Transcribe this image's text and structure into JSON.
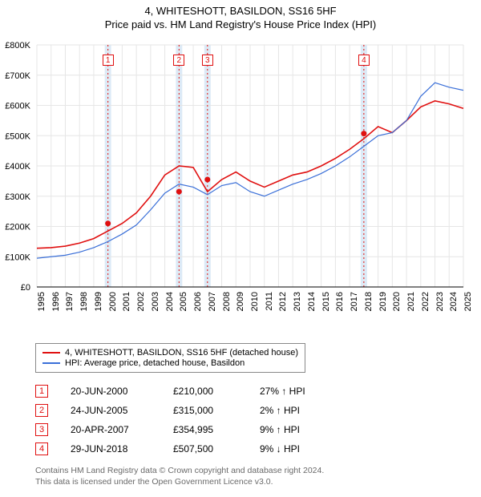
{
  "title_line1": "4, WHITESHOTT, BASILDON, SS16 5HF",
  "title_line2": "Price paid vs. HM Land Registry's House Price Index (HPI)",
  "chart": {
    "type": "line",
    "x_years": [
      1995,
      1996,
      1997,
      1998,
      1999,
      2000,
      2001,
      2002,
      2003,
      2004,
      2005,
      2006,
      2007,
      2008,
      2009,
      2010,
      2011,
      2012,
      2013,
      2014,
      2015,
      2016,
      2017,
      2018,
      2019,
      2020,
      2021,
      2022,
      2023,
      2024,
      2025
    ],
    "ylim": [
      0,
      800000
    ],
    "ytick_step": 100000,
    "ytick_labels": [
      "£0",
      "£100K",
      "£200K",
      "£300K",
      "£400K",
      "£500K",
      "£600K",
      "£700K",
      "£800K"
    ],
    "background": "#ffffff",
    "grid_color": "#e6e6e6",
    "series": [
      {
        "name": "red",
        "label": "4, WHITESHOTT, BASILDON, SS16 5HF (detached house)",
        "color": "#e01010",
        "width": 1.6,
        "values": [
          128,
          130,
          135,
          145,
          160,
          185,
          210,
          245,
          300,
          370,
          400,
          395,
          315,
          355,
          380,
          350,
          330,
          350,
          370,
          380,
          400,
          425,
          455,
          490,
          530,
          510,
          550,
          595,
          615,
          605,
          590
        ]
      },
      {
        "name": "blue",
        "label": "HPI: Average price, detached house, Basildon",
        "color": "#3a6fd8",
        "width": 1.2,
        "values": [
          95,
          100,
          105,
          115,
          130,
          150,
          175,
          205,
          255,
          310,
          340,
          330,
          305,
          335,
          345,
          315,
          300,
          320,
          340,
          355,
          375,
          400,
          430,
          465,
          500,
          510,
          550,
          630,
          675,
          660,
          650
        ]
      }
    ],
    "markers": [
      {
        "n": "1",
        "x_year": 2000,
        "price_k": 210
      },
      {
        "n": "2",
        "x_year": 2005,
        "price_k": 315
      },
      {
        "n": "3",
        "x_year": 2007,
        "price_k": 355
      },
      {
        "n": "4",
        "x_year": 2018,
        "price_k": 507
      }
    ],
    "marker_band_color": "#dceaf7",
    "marker_vline_color": "#e01010"
  },
  "legend": {
    "items": [
      {
        "color": "#e01010",
        "label": "4, WHITESHOTT, BASILDON, SS16 5HF (detached house)"
      },
      {
        "color": "#3a6fd8",
        "label": "HPI: Average price, detached house, Basildon"
      }
    ]
  },
  "transactions": [
    {
      "n": "1",
      "date": "20-JUN-2000",
      "price": "£210,000",
      "pct": "27% ↑ HPI"
    },
    {
      "n": "2",
      "date": "24-JUN-2005",
      "price": "£315,000",
      "pct": "2% ↑ HPI"
    },
    {
      "n": "3",
      "date": "20-APR-2007",
      "price": "£354,995",
      "pct": "9% ↑ HPI"
    },
    {
      "n": "4",
      "date": "29-JUN-2018",
      "price": "£507,500",
      "pct": "9% ↓ HPI"
    }
  ],
  "footer_line1": "Contains HM Land Registry data © Crown copyright and database right 2024.",
  "footer_line2": "This data is licensed under the Open Government Licence v3.0."
}
